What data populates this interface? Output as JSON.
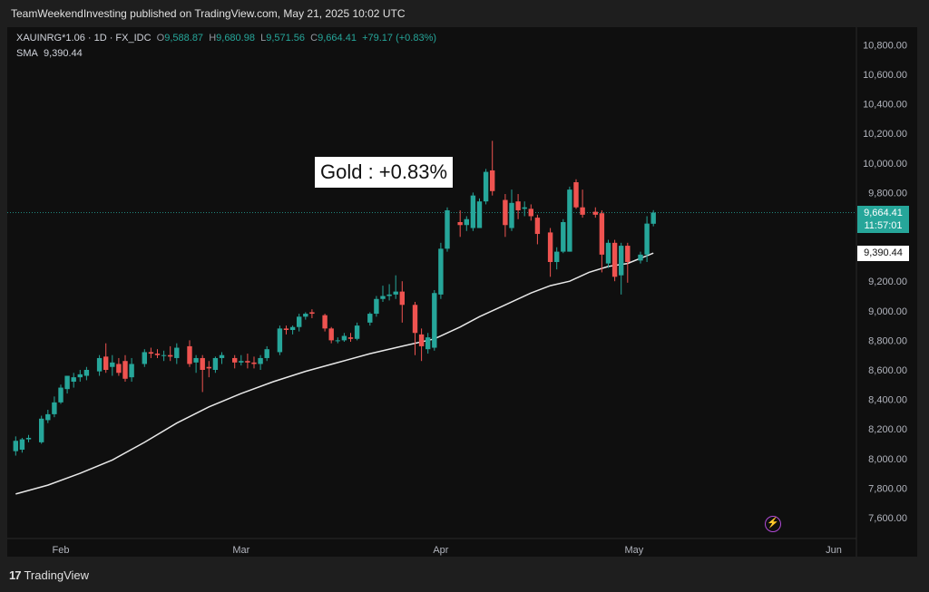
{
  "header": {
    "text": "TeamWeekendInvesting published on TradingView.com, May 21, 2025 10:02 UTC"
  },
  "legend": {
    "symbol": "XAUINRG*1.06 · 1D · FX_IDC",
    "o_label": "O",
    "o_value": "9,588.87",
    "h_label": "H",
    "h_value": "9,680.98",
    "l_label": "L",
    "l_value": "9,571.56",
    "c_label": "C",
    "c_value": "9,664.41",
    "change": "+79.17 (+0.83%)",
    "sma_label": "SMA",
    "sma_value": "9,390.44"
  },
  "annotation": "Gold : +0.83%",
  "price_tag": {
    "price": "9,664.41",
    "countdown": "11:57:01"
  },
  "sma_tag": "9,390.44",
  "footer": {
    "logo_mark": "17",
    "logo_text": "TradingView"
  },
  "colors": {
    "up": "#26a69a",
    "down": "#ef5350",
    "sma": "#e8e8e8",
    "flash": "#b04ad6"
  },
  "chart_data": {
    "type": "candlestick",
    "y_axis": {
      "ylim": [
        7500,
        10900
      ],
      "ticks": [
        7600,
        7800,
        8000,
        8200,
        8400,
        8600,
        8800,
        9000,
        9200,
        9400,
        9600,
        9800,
        10000,
        10200,
        10400,
        10600,
        10800
      ],
      "tick_labels": [
        "7,600.00",
        "7,800.00",
        "8,000.00",
        "8,200.00",
        "8,400.00",
        "8,600.00",
        "8,800.00",
        "9,000.00",
        "9,200.00",
        "9,400.00",
        "9,600.00",
        "9,800.00",
        "10,000.00",
        "10,200.00",
        "10,400.00",
        "10,600.00",
        "10,800.00"
      ]
    },
    "x_axis": {
      "labels": [
        "Feb",
        "Mar",
        "Apr",
        "May",
        "Jun"
      ],
      "label_days": [
        0,
        28,
        59,
        89,
        120
      ]
    },
    "candles": [
      {
        "d": -7,
        "o": 8050,
        "h": 8150,
        "l": 8020,
        "c": 8120
      },
      {
        "d": -6,
        "o": 8060,
        "h": 8140,
        "l": 8040,
        "c": 8130
      },
      {
        "d": -5,
        "o": 8130,
        "h": 8160,
        "l": 8110,
        "c": 8140
      },
      {
        "d": -3,
        "o": 8110,
        "h": 8290,
        "l": 8100,
        "c": 8270
      },
      {
        "d": -2,
        "o": 8260,
        "h": 8330,
        "l": 8240,
        "c": 8300
      },
      {
        "d": -1,
        "o": 8300,
        "h": 8420,
        "l": 8280,
        "c": 8380
      },
      {
        "d": 0,
        "o": 8380,
        "h": 8500,
        "l": 8370,
        "c": 8480
      },
      {
        "d": 1,
        "o": 8470,
        "h": 8560,
        "l": 8440,
        "c": 8560
      },
      {
        "d": 2,
        "o": 8520,
        "h": 8580,
        "l": 8480,
        "c": 8550
      },
      {
        "d": 3,
        "o": 8550,
        "h": 8600,
        "l": 8520,
        "c": 8570
      },
      {
        "d": 4,
        "o": 8560,
        "h": 8620,
        "l": 8530,
        "c": 8600
      },
      {
        "d": 6,
        "o": 8590,
        "h": 8700,
        "l": 8560,
        "c": 8680
      },
      {
        "d": 7,
        "o": 8690,
        "h": 8780,
        "l": 8580,
        "c": 8600
      },
      {
        "d": 8,
        "o": 8620,
        "h": 8700,
        "l": 8560,
        "c": 8650
      },
      {
        "d": 9,
        "o": 8640,
        "h": 8680,
        "l": 8560,
        "c": 8580
      },
      {
        "d": 10,
        "o": 8660,
        "h": 8700,
        "l": 8520,
        "c": 8540
      },
      {
        "d": 11,
        "o": 8550,
        "h": 8680,
        "l": 8520,
        "c": 8640
      },
      {
        "d": 13,
        "o": 8640,
        "h": 8740,
        "l": 8620,
        "c": 8720
      },
      {
        "d": 14,
        "o": 8720,
        "h": 8750,
        "l": 8680,
        "c": 8710
      },
      {
        "d": 15,
        "o": 8710,
        "h": 8740,
        "l": 8680,
        "c": 8700
      },
      {
        "d": 16,
        "o": 8700,
        "h": 8730,
        "l": 8660,
        "c": 8700
      },
      {
        "d": 17,
        "o": 8700,
        "h": 8760,
        "l": 8660,
        "c": 8690
      },
      {
        "d": 18,
        "o": 8680,
        "h": 8780,
        "l": 8640,
        "c": 8750
      },
      {
        "d": 20,
        "o": 8760,
        "h": 8800,
        "l": 8620,
        "c": 8640
      },
      {
        "d": 21,
        "o": 8650,
        "h": 8700,
        "l": 8580,
        "c": 8680
      },
      {
        "d": 22,
        "o": 8680,
        "h": 8700,
        "l": 8450,
        "c": 8600
      },
      {
        "d": 23,
        "o": 8620,
        "h": 8660,
        "l": 8550,
        "c": 8610
      },
      {
        "d": 24,
        "o": 8600,
        "h": 8690,
        "l": 8580,
        "c": 8680
      },
      {
        "d": 25,
        "o": 8680,
        "h": 8720,
        "l": 8640,
        "c": 8700
      },
      {
        "d": 27,
        "o": 8680,
        "h": 8700,
        "l": 8610,
        "c": 8650
      },
      {
        "d": 28,
        "o": 8650,
        "h": 8700,
        "l": 8630,
        "c": 8660
      },
      {
        "d": 29,
        "o": 8660,
        "h": 8710,
        "l": 8610,
        "c": 8650
      },
      {
        "d": 30,
        "o": 8650,
        "h": 8690,
        "l": 8610,
        "c": 8640
      },
      {
        "d": 31,
        "o": 8640,
        "h": 8700,
        "l": 8600,
        "c": 8680
      },
      {
        "d": 32,
        "o": 8680,
        "h": 8760,
        "l": 8660,
        "c": 8740
      },
      {
        "d": 34,
        "o": 8720,
        "h": 8900,
        "l": 8700,
        "c": 8880
      },
      {
        "d": 35,
        "o": 8880,
        "h": 8900,
        "l": 8840,
        "c": 8870
      },
      {
        "d": 36,
        "o": 8870,
        "h": 8900,
        "l": 8840,
        "c": 8890
      },
      {
        "d": 37,
        "o": 8890,
        "h": 8980,
        "l": 8860,
        "c": 8960
      },
      {
        "d": 38,
        "o": 8960,
        "h": 8990,
        "l": 8940,
        "c": 8980
      },
      {
        "d": 39,
        "o": 8990,
        "h": 9010,
        "l": 8950,
        "c": 8980
      },
      {
        "d": 41,
        "o": 8970,
        "h": 8980,
        "l": 8860,
        "c": 8880
      },
      {
        "d": 42,
        "o": 8880,
        "h": 8890,
        "l": 8780,
        "c": 8800
      },
      {
        "d": 43,
        "o": 8800,
        "h": 8820,
        "l": 8780,
        "c": 8800
      },
      {
        "d": 44,
        "o": 8800,
        "h": 8850,
        "l": 8790,
        "c": 8830
      },
      {
        "d": 45,
        "o": 8820,
        "h": 8850,
        "l": 8790,
        "c": 8810
      },
      {
        "d": 46,
        "o": 8810,
        "h": 8920,
        "l": 8800,
        "c": 8900
      },
      {
        "d": 48,
        "o": 8920,
        "h": 8990,
        "l": 8900,
        "c": 8980
      },
      {
        "d": 49,
        "o": 8980,
        "h": 9100,
        "l": 8960,
        "c": 9080
      },
      {
        "d": 50,
        "o": 9080,
        "h": 9170,
        "l": 9060,
        "c": 9100
      },
      {
        "d": 51,
        "o": 9100,
        "h": 9180,
        "l": 9070,
        "c": 9110
      },
      {
        "d": 52,
        "o": 9110,
        "h": 9240,
        "l": 9080,
        "c": 9130
      },
      {
        "d": 53,
        "o": 9130,
        "h": 9200,
        "l": 8920,
        "c": 9040
      },
      {
        "d": 55,
        "o": 9040,
        "h": 9060,
        "l": 8700,
        "c": 8850
      },
      {
        "d": 56,
        "o": 8840,
        "h": 8880,
        "l": 8660,
        "c": 8760
      },
      {
        "d": 57,
        "o": 8740,
        "h": 8850,
        "l": 8710,
        "c": 8820
      },
      {
        "d": 58,
        "o": 8750,
        "h": 9140,
        "l": 8730,
        "c": 9120
      },
      {
        "d": 59,
        "o": 9110,
        "h": 9460,
        "l": 9080,
        "c": 9420
      },
      {
        "d": 60,
        "o": 9420,
        "h": 9700,
        "l": 9400,
        "c": 9680
      },
      {
        "d": 62,
        "o": 9600,
        "h": 9680,
        "l": 9500,
        "c": 9580
      },
      {
        "d": 63,
        "o": 9580,
        "h": 9640,
        "l": 9540,
        "c": 9620
      },
      {
        "d": 64,
        "o": 9560,
        "h": 9800,
        "l": 9540,
        "c": 9780
      },
      {
        "d": 65,
        "o": 9560,
        "h": 9760,
        "l": 9560,
        "c": 9740
      },
      {
        "d": 66,
        "o": 9740,
        "h": 9960,
        "l": 9720,
        "c": 9940
      },
      {
        "d": 67,
        "o": 9950,
        "h": 10150,
        "l": 9780,
        "c": 9810
      },
      {
        "d": 69,
        "o": 9750,
        "h": 9790,
        "l": 9500,
        "c": 9580
      },
      {
        "d": 70,
        "o": 9560,
        "h": 9820,
        "l": 9540,
        "c": 9730
      },
      {
        "d": 71,
        "o": 9740,
        "h": 9790,
        "l": 9620,
        "c": 9680
      },
      {
        "d": 72,
        "o": 9690,
        "h": 9740,
        "l": 9640,
        "c": 9700
      },
      {
        "d": 73,
        "o": 9690,
        "h": 9720,
        "l": 9610,
        "c": 9640
      },
      {
        "d": 74,
        "o": 9630,
        "h": 9650,
        "l": 9450,
        "c": 9520
      },
      {
        "d": 76,
        "o": 9530,
        "h": 9560,
        "l": 9230,
        "c": 9330
      },
      {
        "d": 77,
        "o": 9330,
        "h": 9430,
        "l": 9280,
        "c": 9400
      },
      {
        "d": 78,
        "o": 9400,
        "h": 9620,
        "l": 9390,
        "c": 9600
      },
      {
        "d": 79,
        "o": 9400,
        "h": 9840,
        "l": 9400,
        "c": 9820
      },
      {
        "d": 80,
        "o": 9870,
        "h": 9890,
        "l": 9690,
        "c": 9700
      },
      {
        "d": 81,
        "o": 9700,
        "h": 9820,
        "l": 9630,
        "c": 9650
      },
      {
        "d": 83,
        "o": 9670,
        "h": 9700,
        "l": 9630,
        "c": 9650
      },
      {
        "d": 84,
        "o": 9660,
        "h": 9680,
        "l": 9260,
        "c": 9380
      },
      {
        "d": 85,
        "o": 9320,
        "h": 9480,
        "l": 9290,
        "c": 9460
      },
      {
        "d": 86,
        "o": 9460,
        "h": 9480,
        "l": 9200,
        "c": 9230
      },
      {
        "d": 87,
        "o": 9240,
        "h": 9460,
        "l": 9110,
        "c": 9440
      },
      {
        "d": 88,
        "o": 9440,
        "h": 9460,
        "l": 9190,
        "c": 9330
      },
      {
        "d": 90,
        "o": 9340,
        "h": 9400,
        "l": 9320,
        "c": 9380
      },
      {
        "d": 91,
        "o": 9380,
        "h": 9640,
        "l": 9330,
        "c": 9590
      },
      {
        "d": 92,
        "o": 9588.87,
        "h": 9680.98,
        "l": 9571.56,
        "c": 9664.41
      }
    ],
    "sma": [
      {
        "d": -7,
        "v": 7760
      },
      {
        "d": -2,
        "v": 7820
      },
      {
        "d": 3,
        "v": 7900
      },
      {
        "d": 8,
        "v": 7990
      },
      {
        "d": 13,
        "v": 8110
      },
      {
        "d": 18,
        "v": 8240
      },
      {
        "d": 23,
        "v": 8350
      },
      {
        "d": 28,
        "v": 8440
      },
      {
        "d": 33,
        "v": 8520
      },
      {
        "d": 38,
        "v": 8590
      },
      {
        "d": 43,
        "v": 8650
      },
      {
        "d": 48,
        "v": 8710
      },
      {
        "d": 53,
        "v": 8760
      },
      {
        "d": 58,
        "v": 8810
      },
      {
        "d": 62,
        "v": 8890
      },
      {
        "d": 65,
        "v": 8960
      },
      {
        "d": 69,
        "v": 9040
      },
      {
        "d": 73,
        "v": 9120
      },
      {
        "d": 76,
        "v": 9170
      },
      {
        "d": 79,
        "v": 9200
      },
      {
        "d": 82,
        "v": 9260
      },
      {
        "d": 85,
        "v": 9300
      },
      {
        "d": 88,
        "v": 9320
      },
      {
        "d": 92,
        "v": 9390.44
      }
    ],
    "last_price": 9664.41,
    "sma_last": 9390.44
  }
}
